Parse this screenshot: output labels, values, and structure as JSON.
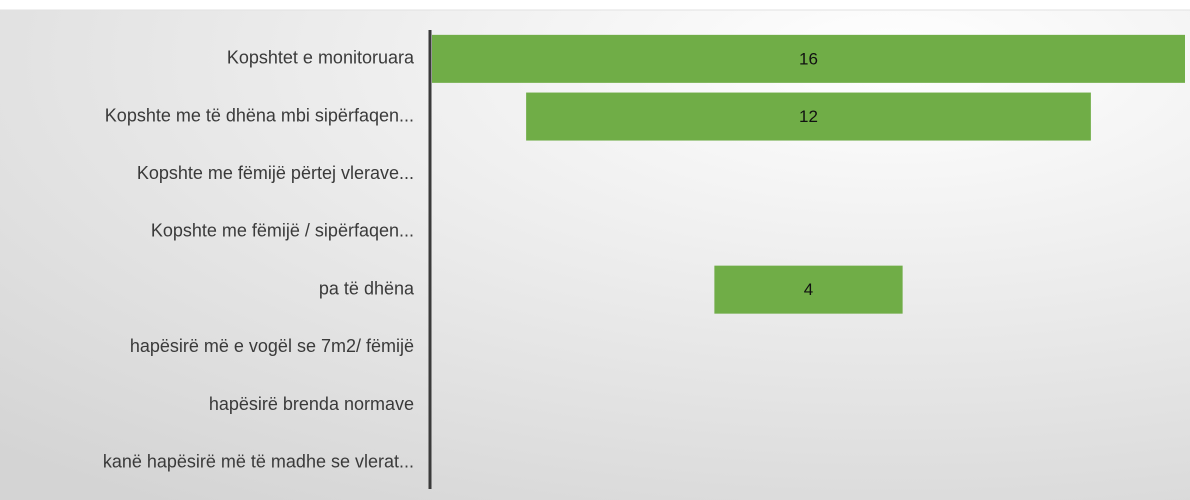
{
  "chart_data": {
    "type": "funnel",
    "categories": [
      "Kopshtet e monitoruara",
      "Kopshte me të dhëna mbi sipërfaqen...",
      "Kopshte me fëmijë përtej vlerave...",
      "Kopshte me fëmijë / sipërfaqen...",
      "pa të dhëna",
      "hapësirë më e vogël se 7m2/ fëmijë",
      "hapësirë brenda normave",
      "kanë hapësirë më të madhe se vlerat..."
    ],
    "values": [
      16,
      12,
      null,
      null,
      4,
      null,
      null,
      null
    ],
    "color": "#70ad47"
  }
}
